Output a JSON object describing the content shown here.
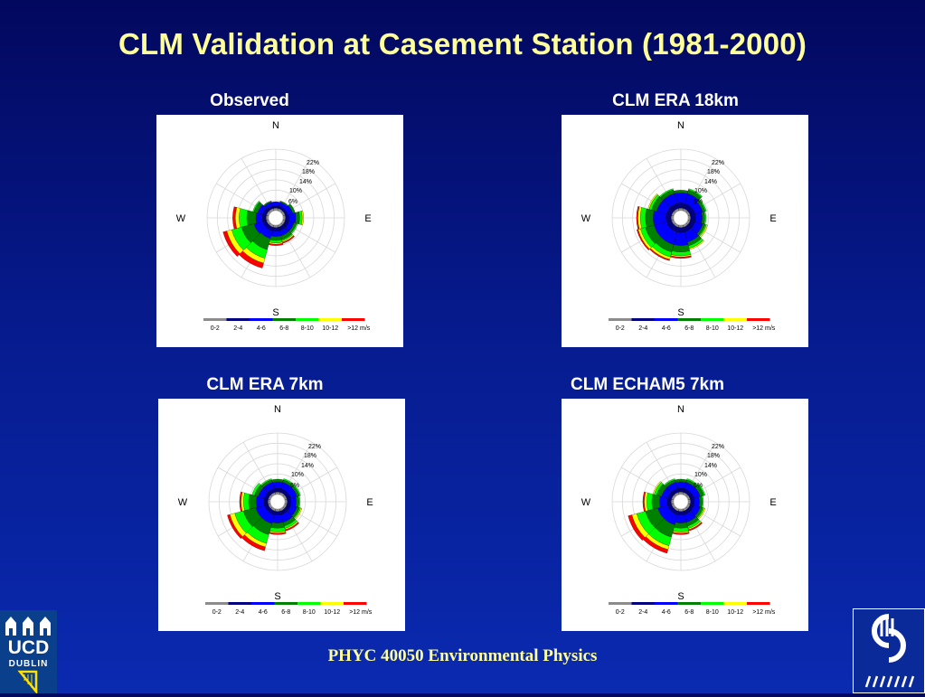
{
  "slide": {
    "title": "CLM Validation at Casement Station (1981-2000)",
    "footer": "PHYC 40050 Environmental Physics",
    "ucd_logo": {
      "line1": "UCD",
      "line2": "DUBLIN",
      "icon": "ucd-crest-icon"
    },
    "icc_logo": {
      "icon": "icc-logo-icon"
    }
  },
  "colors": {
    "speed_bins": [
      "#8c8c8c",
      "#000080",
      "#0000ff",
      "#008000",
      "#00ff00",
      "#ffff00",
      "#ff0000"
    ],
    "title": "#ffff99"
  },
  "chart_data": [
    {
      "type": "windrose",
      "title": "Observed",
      "directions": [
        "N",
        "E",
        "S",
        "W"
      ],
      "radial_ticks": [
        "6%",
        "10%",
        "14%",
        "18%",
        "22%"
      ],
      "radial_max": 24,
      "legend": {
        "labels": [
          "0-2",
          "2-4",
          "4-6",
          "6-8",
          "8-10",
          "10-12",
          ">12 m/s"
        ]
      },
      "sectors": [
        {
          "dir": 0,
          "values": [
            1,
            1,
            1.5,
            0,
            0,
            0,
            0
          ]
        },
        {
          "dir": 30,
          "values": [
            1,
            1,
            1.5,
            0.5,
            0,
            0,
            0
          ]
        },
        {
          "dir": 60,
          "values": [
            1,
            1,
            2,
            1,
            0,
            0,
            0
          ]
        },
        {
          "dir": 90,
          "values": [
            1,
            1.5,
            2.5,
            1.5,
            1,
            0.5,
            0
          ]
        },
        {
          "dir": 120,
          "values": [
            1,
            1.5,
            2,
            1,
            0.5,
            0,
            0
          ]
        },
        {
          "dir": 150,
          "values": [
            1,
            1.5,
            2,
            1.5,
            0.5,
            0.5,
            0.5
          ]
        },
        {
          "dir": 180,
          "values": [
            1,
            1.5,
            2,
            1.5,
            1,
            0.5,
            0.5
          ]
        },
        {
          "dir": 210,
          "values": [
            1,
            1.5,
            3,
            4.5,
            3.5,
            2,
            2
          ]
        },
        {
          "dir": 240,
          "values": [
            1,
            1.5,
            3.5,
            5,
            4,
            2,
            1.5
          ]
        },
        {
          "dir": 270,
          "values": [
            1,
            1.5,
            2.5,
            3.5,
            3,
            1.5,
            1
          ]
        },
        {
          "dir": 300,
          "values": [
            1,
            1.5,
            2,
            1.5,
            0.5,
            0,
            0
          ]
        },
        {
          "dir": 330,
          "values": [
            1,
            1,
            1.5,
            0.5,
            0,
            0,
            0
          ]
        }
      ]
    },
    {
      "type": "windrose",
      "title": "CLM ERA 18km",
      "directions": [
        "N",
        "E",
        "S",
        "W"
      ],
      "radial_ticks": [
        "6%",
        "10%",
        "14%",
        "18%",
        "22%"
      ],
      "radial_max": 24,
      "legend": {
        "labels": [
          "0-2",
          "2-4",
          "4-6",
          "6-8",
          "8-10",
          "10-12",
          ">12 m/s"
        ]
      },
      "sectors": [
        {
          "dir": 0,
          "values": [
            1,
            2,
            4,
            1,
            0,
            0,
            0
          ]
        },
        {
          "dir": 30,
          "values": [
            1,
            2,
            4,
            1.5,
            0.5,
            0,
            0
          ]
        },
        {
          "dir": 60,
          "values": [
            1,
            2,
            3,
            1,
            0.5,
            0,
            0
          ]
        },
        {
          "dir": 90,
          "values": [
            1,
            2,
            2.5,
            1,
            0.5,
            0,
            0
          ]
        },
        {
          "dir": 120,
          "values": [
            1,
            2,
            3,
            1,
            0.5,
            0.5,
            0
          ]
        },
        {
          "dir": 150,
          "values": [
            1,
            2,
            4,
            1.5,
            1,
            0.5,
            0
          ]
        },
        {
          "dir": 180,
          "values": [
            1,
            2,
            5,
            2.5,
            1.5,
            0.5,
            0.5
          ]
        },
        {
          "dir": 210,
          "values": [
            1,
            2,
            5,
            3,
            2,
            1,
            0.5
          ]
        },
        {
          "dir": 240,
          "values": [
            1,
            2,
            5,
            3.5,
            2,
            1,
            0.5
          ]
        },
        {
          "dir": 270,
          "values": [
            1,
            2,
            5,
            3,
            2,
            1,
            0.5
          ]
        },
        {
          "dir": 300,
          "values": [
            1,
            2,
            4,
            2,
            1,
            0.5,
            0
          ]
        },
        {
          "dir": 330,
          "values": [
            1,
            2,
            4,
            1.5,
            0.5,
            0,
            0
          ]
        }
      ]
    },
    {
      "type": "windrose",
      "title": "CLM ERA 7km",
      "directions": [
        "N",
        "E",
        "S",
        "W"
      ],
      "radial_ticks": [
        "6%",
        "10%",
        "14%",
        "18%",
        "22%"
      ],
      "radial_max": 24,
      "legend": {
        "labels": [
          "0-2",
          "2-4",
          "4-6",
          "6-8",
          "8-10",
          "10-12",
          ">12 m/s"
        ]
      },
      "sectors": [
        {
          "dir": 0,
          "values": [
            1,
            1.5,
            2.5,
            1,
            0,
            0,
            0
          ]
        },
        {
          "dir": 30,
          "values": [
            1,
            1.5,
            2.5,
            1,
            0.5,
            0,
            0
          ]
        },
        {
          "dir": 60,
          "values": [
            1,
            1.5,
            2.5,
            1,
            0.5,
            0,
            0
          ]
        },
        {
          "dir": 90,
          "values": [
            1,
            1.5,
            2,
            1,
            0.5,
            0,
            0
          ]
        },
        {
          "dir": 120,
          "values": [
            1,
            1.5,
            2.5,
            1,
            0.5,
            0.5,
            0
          ]
        },
        {
          "dir": 150,
          "values": [
            1,
            1.5,
            3,
            1.5,
            1,
            0.5,
            0.5
          ]
        },
        {
          "dir": 180,
          "values": [
            1,
            1.5,
            3,
            2,
            1.5,
            0.5,
            0.5
          ]
        },
        {
          "dir": 210,
          "values": [
            1,
            1.5,
            3.5,
            4.5,
            3.5,
            1.5,
            1.5
          ]
        },
        {
          "dir": 240,
          "values": [
            1,
            1.5,
            3.5,
            5,
            3.5,
            2,
            1
          ]
        },
        {
          "dir": 270,
          "values": [
            1,
            1.5,
            3,
            3,
            2,
            1,
            0.5
          ]
        },
        {
          "dir": 300,
          "values": [
            1,
            1.5,
            2.5,
            1.5,
            1,
            0,
            0
          ]
        },
        {
          "dir": 330,
          "values": [
            1,
            1.5,
            2.5,
            1,
            0.5,
            0,
            0
          ]
        }
      ]
    },
    {
      "type": "windrose",
      "title": "CLM ECHAM5 7km",
      "directions": [
        "N",
        "E",
        "S",
        "W"
      ],
      "radial_ticks": [
        "6%",
        "10%",
        "14%",
        "18%",
        "22%"
      ],
      "radial_max": 24,
      "legend": {
        "labels": [
          "0-2",
          "2-4",
          "4-6",
          "6-8",
          "8-10",
          "10-12",
          ">12 m/s"
        ]
      },
      "sectors": [
        {
          "dir": 0,
          "values": [
            1,
            1.5,
            2.5,
            1,
            0,
            0,
            0
          ]
        },
        {
          "dir": 30,
          "values": [
            1,
            1.5,
            2.5,
            1,
            0.5,
            0,
            0
          ]
        },
        {
          "dir": 60,
          "values": [
            1,
            1.5,
            2.5,
            1.5,
            0.5,
            0,
            0
          ]
        },
        {
          "dir": 90,
          "values": [
            1,
            1.5,
            2,
            1,
            0.5,
            0,
            0
          ]
        },
        {
          "dir": 120,
          "values": [
            1,
            1.5,
            2.5,
            1,
            0.5,
            0.5,
            0
          ]
        },
        {
          "dir": 150,
          "values": [
            1,
            1.5,
            3,
            1.5,
            1,
            0.5,
            0.5
          ]
        },
        {
          "dir": 180,
          "values": [
            1,
            1.5,
            3,
            2,
            1.5,
            0.5,
            0.5
          ]
        },
        {
          "dir": 210,
          "values": [
            1,
            1.5,
            4,
            5,
            3.5,
            1.5,
            1.5
          ]
        },
        {
          "dir": 240,
          "values": [
            1,
            1.5,
            4,
            5,
            3.5,
            2,
            1.5
          ]
        },
        {
          "dir": 270,
          "values": [
            1,
            1.5,
            3,
            3,
            2,
            1,
            0.5
          ]
        },
        {
          "dir": 300,
          "values": [
            1,
            1.5,
            2.5,
            2,
            1,
            0.5,
            0
          ]
        },
        {
          "dir": 330,
          "values": [
            1,
            1.5,
            2.5,
            1,
            0.5,
            0,
            0
          ]
        }
      ]
    }
  ]
}
